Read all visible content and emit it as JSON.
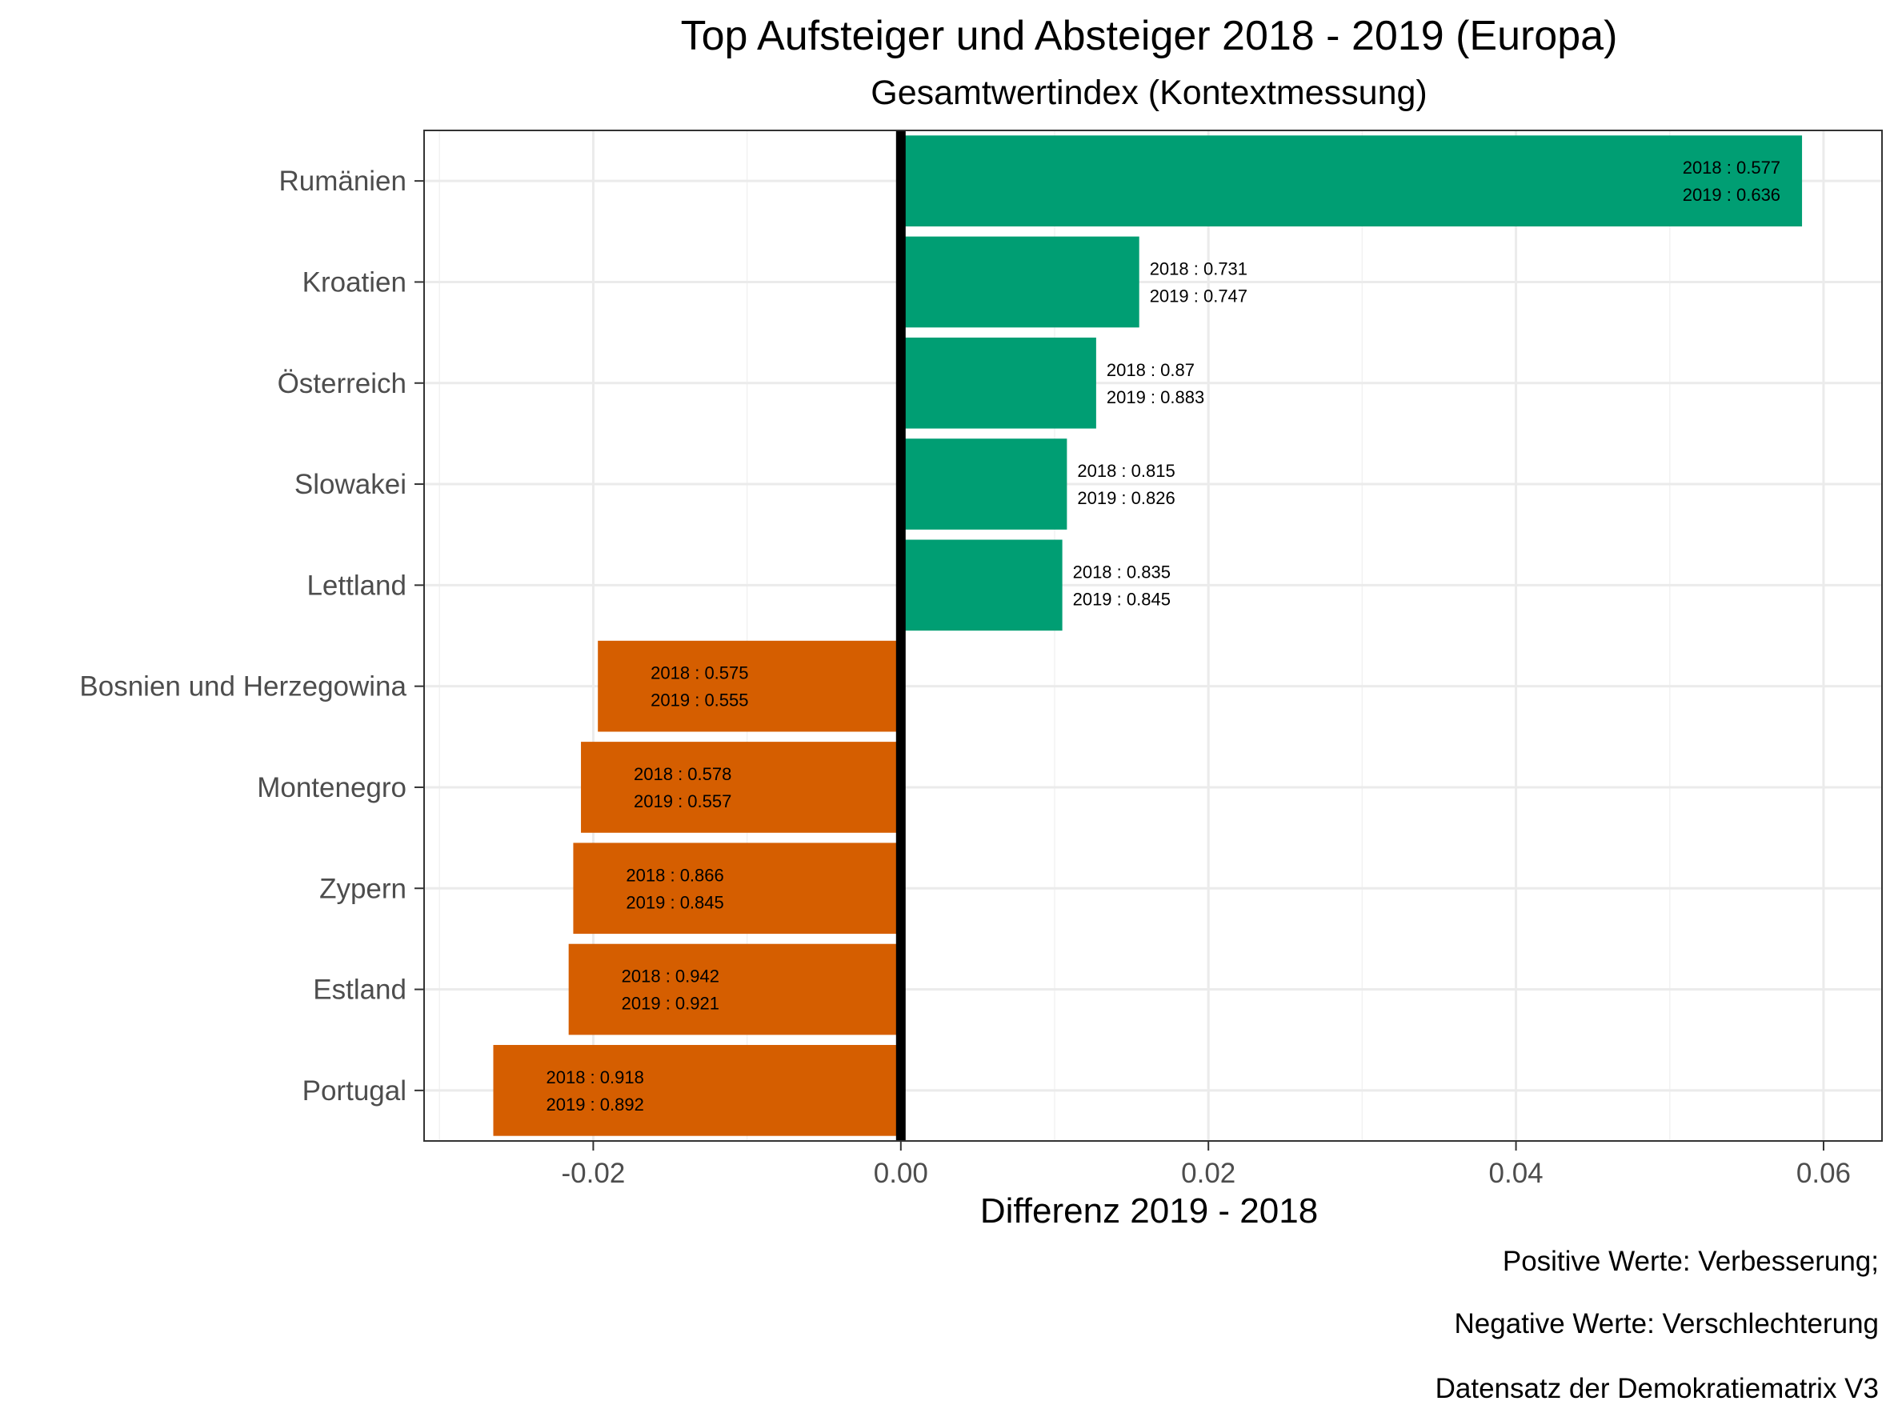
{
  "chart_data": {
    "type": "bar",
    "orientation": "horizontal",
    "title": "Top Aufsteiger und Absteiger 2018 - 2019 (Europa)",
    "subtitle": "Gesamtwertindex (Kontextmessung)",
    "xlabel": "Differenz 2019 - 2018",
    "ylabel": "",
    "xlim": [
      -0.031,
      0.0638
    ],
    "xticks": [
      -0.02,
      0.0,
      0.02,
      0.04,
      0.06
    ],
    "xtick_labels": [
      "-0.02",
      "0.00",
      "0.02",
      "0.04",
      "0.06"
    ],
    "grid": true,
    "legend": "none",
    "colors": {
      "positive": "#009E73",
      "negative": "#D55E00",
      "zero_line": "#000000"
    },
    "categories": [
      "Rumänien",
      "Kroatien",
      "Österreich",
      "Slowakei",
      "Lettland",
      "Bosnien und Herzegowina",
      "Montenegro",
      "Zypern",
      "Estland",
      "Portugal"
    ],
    "values": [
      0.0586,
      0.0155,
      0.0127,
      0.0108,
      0.0105,
      -0.0197,
      -0.0208,
      -0.0213,
      -0.0216,
      -0.0265
    ],
    "annotations": [
      [
        "2018 : 0.577",
        "2019 : 0.636"
      ],
      [
        "2018 : 0.731",
        "2019 : 0.747"
      ],
      [
        "2018 : 0.87",
        "2019 : 0.883"
      ],
      [
        "2018 : 0.815",
        "2019 : 0.826"
      ],
      [
        "2018 : 0.835",
        "2019 : 0.845"
      ],
      [
        "2018 : 0.575",
        "2019 : 0.555"
      ],
      [
        "2018 : 0.578",
        "2019 : 0.557"
      ],
      [
        "2018 : 0.866",
        "2019 : 0.845"
      ],
      [
        "2018 : 0.942",
        "2019 : 0.921"
      ],
      [
        "2018 : 0.918",
        "2019 : 0.892"
      ]
    ],
    "caption": [
      "Positive Werte: Verbesserung;",
      "Negative Werte: Verschlechterung",
      "Datensatz der Demokratiematrix V3"
    ]
  }
}
